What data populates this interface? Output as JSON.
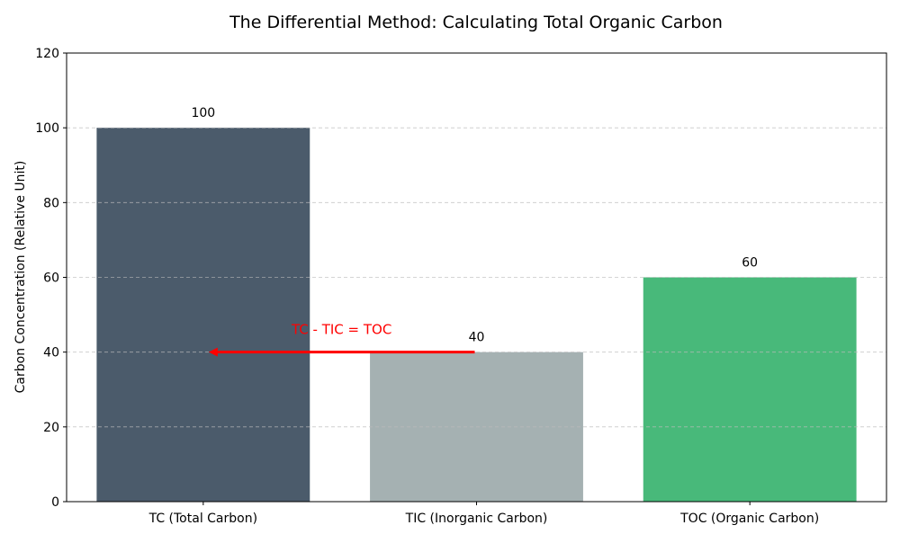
{
  "chart_data": {
    "type": "bar",
    "title": "The Differential Method: Calculating Total Organic Carbon",
    "xlabel": "",
    "ylabel": "Carbon Concentration (Relative Unit)",
    "categories": [
      "TC (Total Carbon)",
      "TIC (Inorganic Carbon)",
      "TOC (Organic Carbon)"
    ],
    "values": [
      100,
      40,
      60
    ],
    "data_labels": [
      "100",
      "40",
      "60"
    ],
    "colors": [
      "#4b5b6b",
      "#a5b1b2",
      "#48b97a"
    ],
    "ylim": [
      0,
      120
    ],
    "yticks": [
      0,
      20,
      40,
      60,
      80,
      100,
      120
    ],
    "grid": "y-dashed",
    "annotation": {
      "text": "TC - TIC = TOC",
      "color": "#ff0000",
      "arrow_from": {
        "category": "TIC (Inorganic Carbon)",
        "y": 40
      },
      "arrow_to": {
        "category": "TC (Total Carbon)",
        "y": 40
      }
    }
  }
}
